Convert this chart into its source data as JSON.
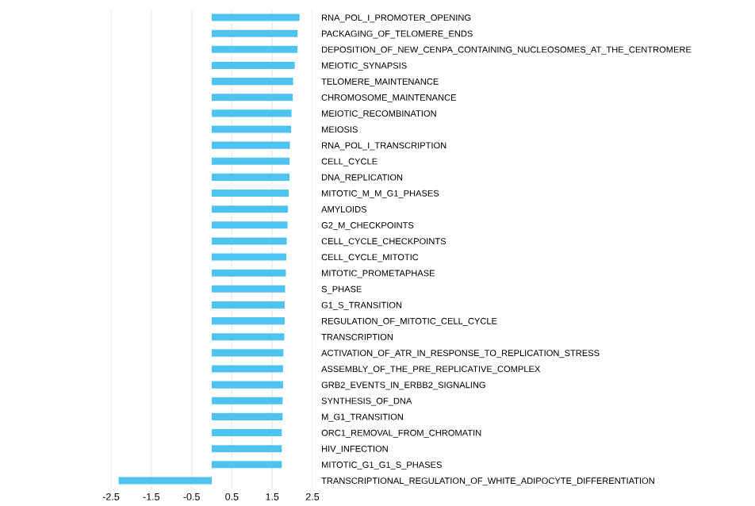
{
  "chart_data": {
    "type": "bar",
    "orientation": "horizontal",
    "color": "#4fc3f0",
    "categories": [
      "RNA_POL_I_PROMOTER_OPENING",
      "PACKAGING_OF_TELOMERE_ENDS",
      "DEPOSITION_OF_NEW_CENPA_CONTAINING_NUCLEOSOMES_AT_THE_CENTROMERE",
      "MEIOTIC_SYNAPSIS",
      "TELOMERE_MAINTENANCE",
      "CHROMOSOME_MAINTENANCE",
      "MEIOTIC_RECOMBINATION",
      "MEIOSIS",
      "RNA_POL_I_TRANSCRIPTION",
      "CELL_CYCLE",
      "DNA_REPLICATION",
      "MITOTIC_M_M_G1_PHASES",
      "AMYLOIDS",
      "G2_M_CHECKPOINTS",
      "CELL_CYCLE_CHECKPOINTS",
      "CELL_CYCLE_MITOTIC",
      "MITOTIC_PROMETAPHASE",
      "S_PHASE",
      "G1_S_TRANSITION",
      "REGULATION_OF_MITOTIC_CELL_CYCLE",
      "TRANSCRIPTION",
      "ACTIVATION_OF_ATR_IN_RESPONSE_TO_REPLICATION_STRESS",
      "ASSEMBLY_OF_THE_PRE_REPLICATIVE_COMPLEX",
      "GRB2_EVENTS_IN_ERBB2_SIGNALING",
      "SYNTHESIS_OF_DNA",
      "M_G1_TRANSITION",
      "ORC1_REMOVAL_FROM_CHROMATIN",
      "HIV_INFECTION",
      "MITOTIC_G1_G1_S_PHASES",
      "TRANSCRIPTIONAL_REGULATION_OF_WHITE_ADIPOCYTE_DIFFERENTIATION"
    ],
    "values": [
      2.18,
      2.13,
      2.13,
      2.06,
      2.02,
      2.01,
      1.98,
      1.97,
      1.94,
      1.93,
      1.93,
      1.91,
      1.89,
      1.88,
      1.86,
      1.85,
      1.84,
      1.82,
      1.81,
      1.81,
      1.8,
      1.78,
      1.77,
      1.77,
      1.76,
      1.76,
      1.74,
      1.74,
      1.74,
      -2.31
    ],
    "xlim": [
      -2.5,
      2.5
    ],
    "xticks": [
      -2.5,
      -1.5,
      -0.5,
      0.5,
      1.5,
      2.5
    ],
    "grid": "x"
  }
}
